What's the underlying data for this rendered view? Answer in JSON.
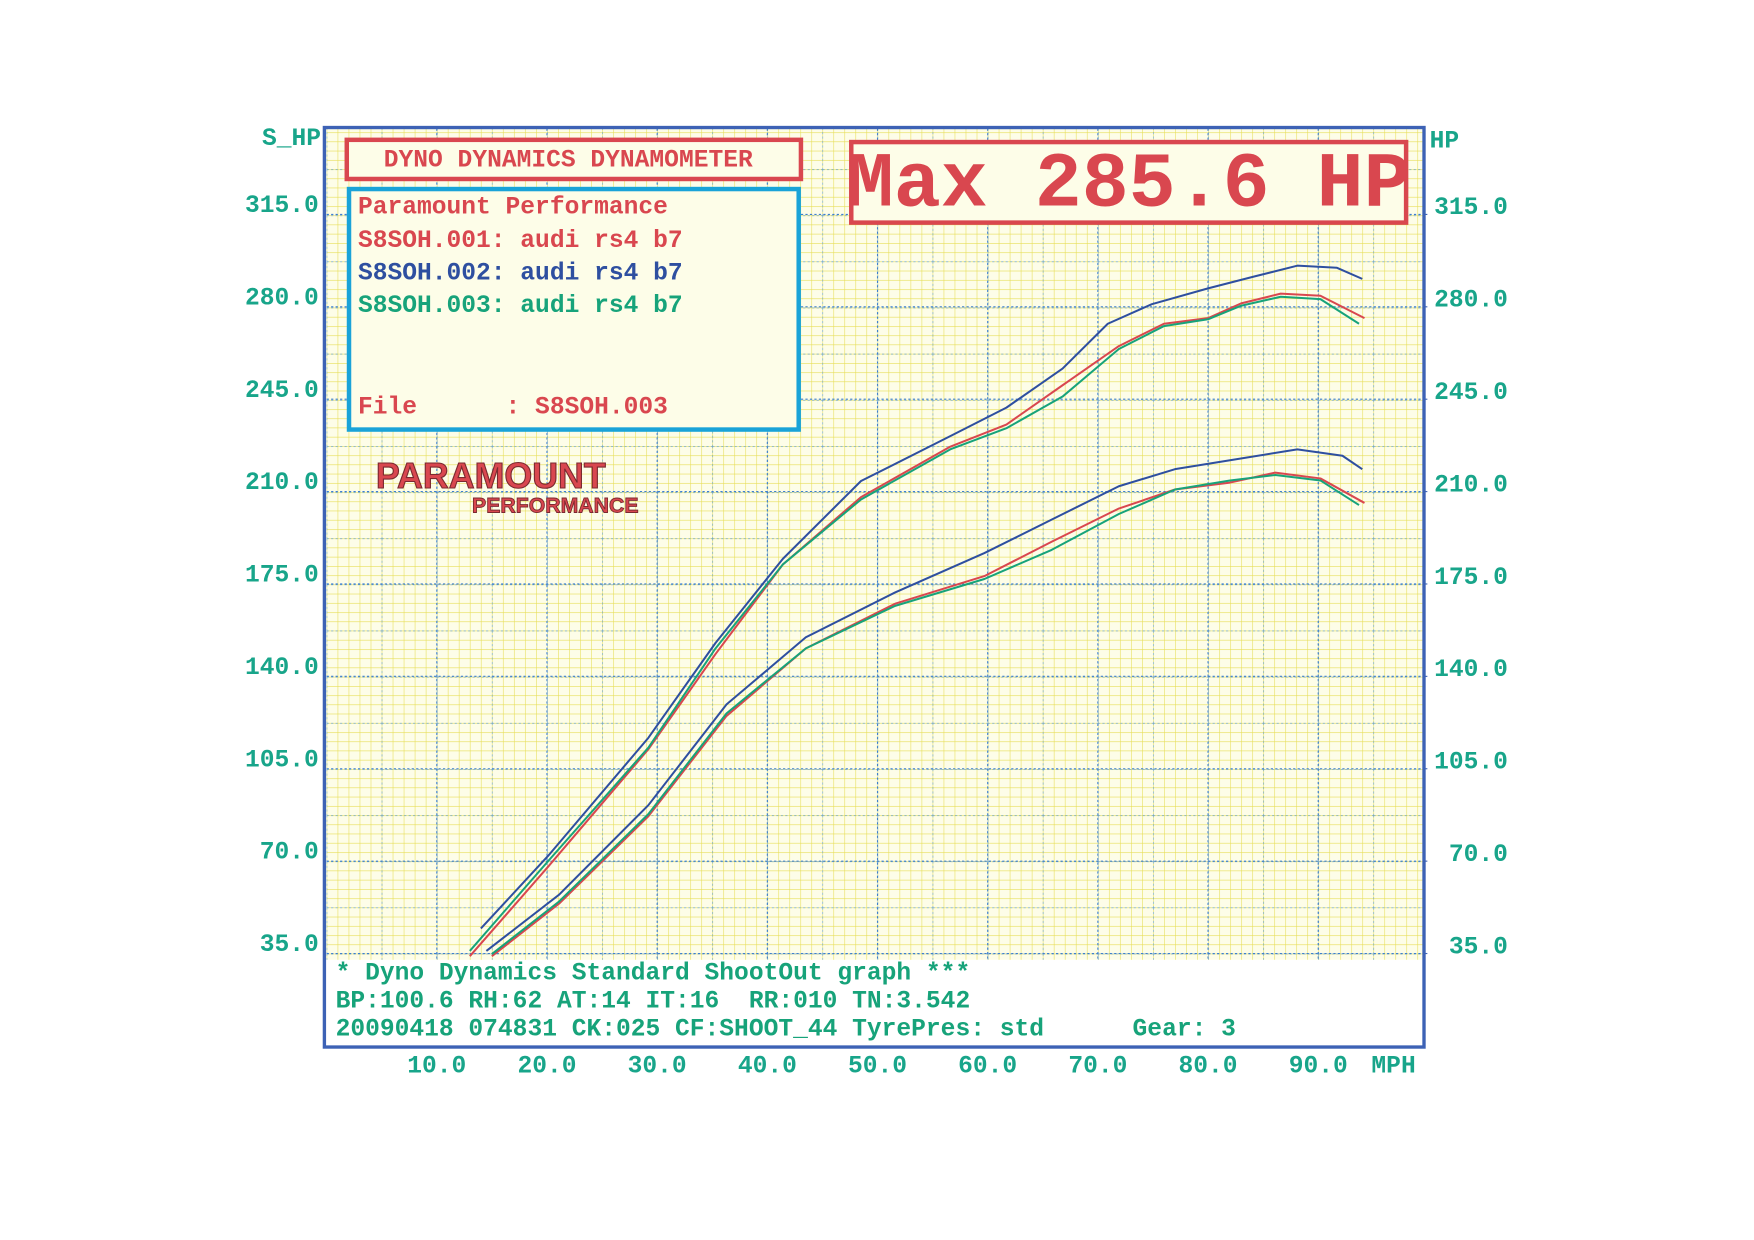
{
  "chart_data": {
    "type": "line",
    "title": "DYNO DYNAMICS DYNAMOMETER",
    "headline": "Max 285.6 HP",
    "ylabel": "S_HP",
    "y2label": "HP",
    "xlabel": "MPH",
    "legend_title": "Paramount Performance",
    "file_label": "File      : S8SOH.003",
    "logo": [
      "PARAMOUNT",
      "PERFORMANCE"
    ],
    "footer": [
      "* Dyno Dynamics Standard ShootOut graph ***",
      "BP:100.6 RH:62 AT:14 IT:16  RR:010 TN:3.542",
      "20090418 074831 CK:025 CF:SHOOT_44 TyrePres: std      Gear: 3"
    ],
    "xlim": [
      0,
      99.5
    ],
    "xticks": [
      {
        "value": 10,
        "label": "10.0"
      },
      {
        "value": 20,
        "label": "20.0"
      },
      {
        "value": 30,
        "label": "30.0"
      },
      {
        "value": 40,
        "label": "40.0"
      },
      {
        "value": 50,
        "label": "50.0"
      },
      {
        "value": 60,
        "label": "60.0"
      },
      {
        "value": 70,
        "label": "70.0"
      },
      {
        "value": 80,
        "label": "80.0"
      },
      {
        "value": 90,
        "label": "90.0"
      }
    ],
    "ylim": [
      0,
      347.5
    ],
    "yticks": [
      {
        "value": 35,
        "label": "35.0"
      },
      {
        "value": 70,
        "label": "70.0"
      },
      {
        "value": 105,
        "label": "105.0"
      },
      {
        "value": 140,
        "label": "140.0"
      },
      {
        "value": 175,
        "label": "175.0"
      },
      {
        "value": 210,
        "label": "210.0"
      },
      {
        "value": 245,
        "label": "245.0"
      },
      {
        "value": 280,
        "label": "280.0"
      },
      {
        "value": 315,
        "label": "315.0"
      }
    ],
    "y2lim": [
      0,
      347.5
    ],
    "y2ticks": [
      {
        "value": 35,
        "label": "35.0"
      },
      {
        "value": 70,
        "label": "70.0"
      },
      {
        "value": 105,
        "label": "105.0"
      },
      {
        "value": 140,
        "label": "140.0"
      },
      {
        "value": 175,
        "label": "175.0"
      },
      {
        "value": 210,
        "label": "210.0"
      },
      {
        "value": 245,
        "label": "245.0"
      },
      {
        "value": 280,
        "label": "280.0"
      },
      {
        "value": 315,
        "label": "315.0"
      }
    ],
    "grid": true,
    "series": [
      {
        "name": "S8SOH.001: audi rs4 b7",
        "color": "#d9474f",
        "x": [
          13,
          20.1,
          29.2,
          35.3,
          41.4,
          48.5,
          56.6,
          61.7,
          66.8,
          71.9,
          76,
          80,
          83,
          86.6,
          90.2,
          94.2
        ],
        "values": [
          34,
          67.9,
          112.4,
          148.5,
          182.4,
          207.9,
          227,
          235.4,
          250.3,
          265.1,
          273.6,
          275.7,
          281.3,
          285,
          284.2,
          275.7
        ],
        "lower_x": [
          15,
          21.1,
          29.2,
          36.3,
          43.5,
          51.6,
          59.7,
          65.8,
          71.9,
          77,
          82,
          86.1,
          90.2,
          94.2
        ],
        "lower_values": [
          34,
          53.9,
          87,
          125,
          150.6,
          167.5,
          178,
          191,
          203.6,
          210.8,
          213.4,
          217.2,
          215,
          205.7
        ]
      },
      {
        "name": "S8SOH.002: audi rs4 b7",
        "color": "#2e4fa0",
        "x": [
          14,
          20.1,
          29.2,
          35.3,
          41.4,
          48.5,
          56.6,
          61.7,
          66.8,
          70.9,
          74.9,
          80,
          84.1,
          88.1,
          91.7,
          94
        ],
        "values": [
          44.5,
          72,
          116.7,
          152.7,
          184.5,
          214,
          231,
          241.8,
          256.6,
          273.6,
          281,
          287,
          291.4,
          295.6,
          294.8,
          290.6
        ],
        "lower_x": [
          14.5,
          21.1,
          29.2,
          36.3,
          43.5,
          51.6,
          59.7,
          65.8,
          71.9,
          77,
          82,
          88.1,
          92.2,
          94
        ],
        "lower_values": [
          36,
          57.3,
          91.2,
          129.4,
          154.8,
          171.8,
          186.7,
          199.4,
          212,
          218.5,
          221.9,
          226,
          223.6,
          218.5
        ]
      },
      {
        "name": "S8SOH.003: audi rs4 b7",
        "color": "#17a37a",
        "x": [
          13,
          20.1,
          29.2,
          35.3,
          41.4,
          48.5,
          56.6,
          61.7,
          66.8,
          71.9,
          76,
          80,
          83,
          86.6,
          90.2,
          93.7
        ],
        "values": [
          36,
          70,
          113,
          150.6,
          182.4,
          207,
          226,
          234,
          246,
          264,
          272.7,
          275.3,
          280.4,
          283.8,
          282.9,
          273.6
        ],
        "lower_x": [
          15,
          21.1,
          29.2,
          36.3,
          43.5,
          51.6,
          59.7,
          65.8,
          71.9,
          77,
          82,
          86.1,
          90.2,
          93.7
        ],
        "lower_values": [
          34.8,
          54.7,
          87.8,
          126,
          150.6,
          166.7,
          176.9,
          187.9,
          201.5,
          210.8,
          214.2,
          216.3,
          214.2,
          204.9
        ]
      }
    ]
  }
}
